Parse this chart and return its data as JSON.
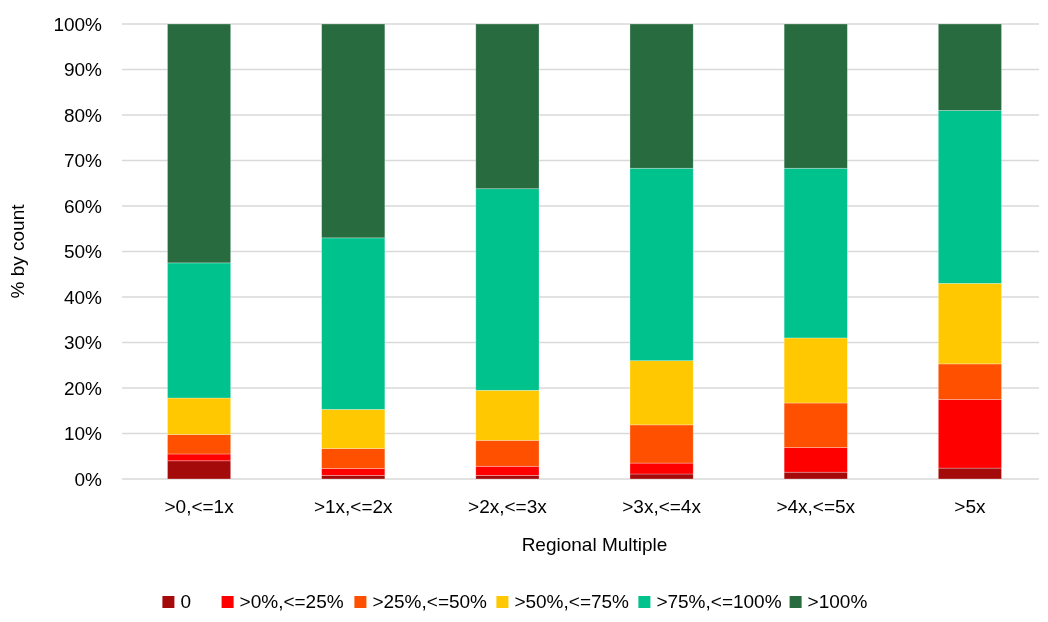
{
  "chart_data": {
    "type": "bar",
    "stacked": true,
    "xlabel": "Regional Multiple",
    "ylabel": "% by count",
    "categories": [
      ">0,<=1x",
      ">1x,<=2x",
      ">2x,<=3x",
      ">3x,<=4x",
      ">4x,<=5x",
      ">5x"
    ],
    "series": [
      {
        "name": "0",
        "color": "#a50a0a",
        "values": [
          4,
          0.8,
          0.8,
          1.1,
          1.5,
          2.4
        ]
      },
      {
        "name": ">0%,<=25%",
        "color": "#ff0000",
        "values": [
          1.5,
          1.5,
          2,
          2.4,
          5.4,
          15.1
        ]
      },
      {
        "name": ">25%,<=50%",
        "color": "#ff5000",
        "values": [
          4.3,
          4.4,
          5.7,
          8.4,
          9.8,
          7.8
        ]
      },
      {
        "name": ">50%,<=75%",
        "color": "#ffc800",
        "values": [
          8,
          8.6,
          11,
          14.1,
          14.3,
          17.7
        ]
      },
      {
        "name": ">75%,<=100%",
        "color": "#00c28c",
        "values": [
          29.7,
          37.7,
          44.3,
          42.3,
          37.3,
          38
        ]
      },
      {
        "name": ">100%",
        "color": "#276b3f",
        "values": [
          52.5,
          47,
          36.2,
          31.7,
          31.7,
          19
        ]
      }
    ],
    "ylim": [
      0,
      100
    ],
    "yticks": [
      {
        "value": 0,
        "label": "0%"
      },
      {
        "value": 10,
        "label": "10%"
      },
      {
        "value": 20,
        "label": "20%"
      },
      {
        "value": 30,
        "label": "30%"
      },
      {
        "value": 40,
        "label": "40%"
      },
      {
        "value": 50,
        "label": "50%"
      },
      {
        "value": 60,
        "label": "60%"
      },
      {
        "value": 70,
        "label": "70%"
      },
      {
        "value": 80,
        "label": "80%"
      },
      {
        "value": 90,
        "label": "90%"
      },
      {
        "value": 100,
        "label": "100%"
      }
    ],
    "grid": "y",
    "legend": "bottom"
  }
}
